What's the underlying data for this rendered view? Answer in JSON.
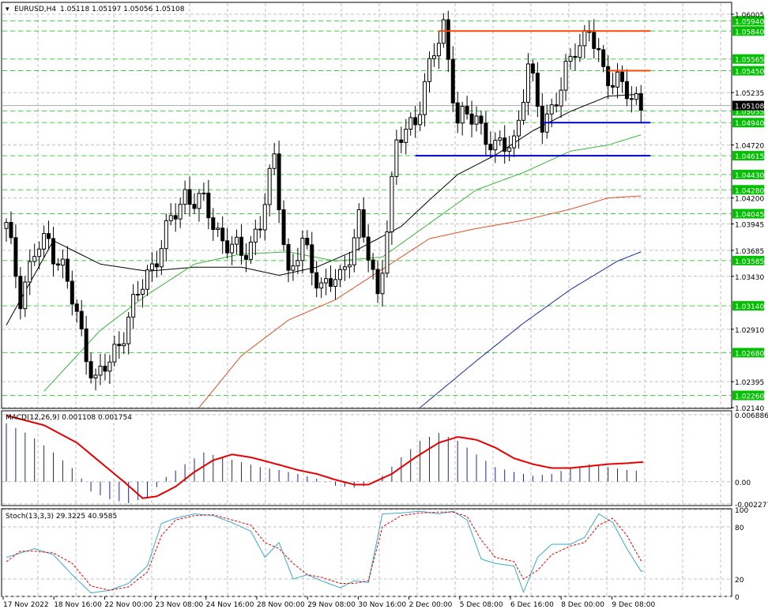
{
  "header": {
    "symbol": "EURUSD,H4",
    "ohlc": "1.05118 1.05197 1.05056 1.05108"
  },
  "colors": {
    "background": "#ffffff",
    "grid": "#c0c0c0",
    "candle": "#000000",
    "ma_fast": "#000000",
    "ma_mid": "#3cb43c",
    "ma_slow": "#e0502a",
    "ma_long": "#1a2aa8",
    "resistance": "#ff4500",
    "support": "#0000cc",
    "level_line": "#00c000",
    "level_tag": "#00c000",
    "macd_hist": "#1a2a8a",
    "macd_signal": "#e60000",
    "stoch_main": "#3fa9c9",
    "stoch_signal": "#e60000"
  },
  "chart_data": [
    {
      "type": "candlestick",
      "name": "price",
      "ylim": [
        1.0214,
        1.06005
      ],
      "price_ticks": [
        "1.06005",
        "1.05235",
        "1.04720",
        "1.04200",
        "1.03945",
        "1.03685",
        "1.03430",
        "1.02910",
        "1.02395",
        "1.02140"
      ],
      "current_price": "1.05108",
      "level_tags": [
        "1.05940",
        "1.05840",
        "1.05565",
        "1.05450",
        "1.05055",
        "1.04940",
        "1.04615",
        "1.04430",
        "1.04280",
        "1.04045",
        "1.03585",
        "1.03140",
        "1.02680",
        "1.02260"
      ],
      "x_labels": [
        "17 Nov 2022",
        "18 Nov 16:00",
        "22 Nov 00:00",
        "23 Nov 08:00",
        "24 Nov 16:00",
        "28 Nov 00:00",
        "29 Nov 08:00",
        "30 Nov 16:00",
        "2 Dec 00:00",
        "5 Dec 08:00",
        "6 Dec 16:00",
        "8 Dec 00:00",
        "9 Dec 08:00"
      ],
      "horizontal_lines": [
        {
          "kind": "resistance",
          "price": 1.0584,
          "from_bar": 92,
          "to_bar": 137
        },
        {
          "kind": "resistance",
          "price": 1.0545,
          "from_bar": 128,
          "to_bar": 137
        },
        {
          "kind": "support",
          "price": 1.0494,
          "from_bar": 114,
          "to_bar": 137
        },
        {
          "kind": "support",
          "price": 1.04615,
          "from_bar": 87,
          "to_bar": 137
        }
      ],
      "anchors": [
        [
          0,
          1.039
        ],
        [
          3,
          1.0325
        ],
        [
          6,
          1.0365
        ],
        [
          9,
          1.0378
        ],
        [
          12,
          1.0352
        ],
        [
          16,
          1.0285
        ],
        [
          19,
          1.024
        ],
        [
          22,
          1.0258
        ],
        [
          26,
          1.0302
        ],
        [
          30,
          1.0345
        ],
        [
          34,
          1.0385
        ],
        [
          38,
          1.0425
        ],
        [
          42,
          1.0412
        ],
        [
          46,
          1.038
        ],
        [
          50,
          1.0362
        ],
        [
          54,
          1.0395
        ],
        [
          57,
          1.0456
        ],
        [
          60,
          1.0345
        ],
        [
          63,
          1.0372
        ],
        [
          67,
          1.0335
        ],
        [
          71,
          1.0338
        ],
        [
          75,
          1.04
        ],
        [
          79,
          1.0322
        ],
        [
          83,
          1.047
        ],
        [
          87,
          1.05
        ],
        [
          90,
          1.0545
        ],
        [
          93,
          1.059
        ],
        [
          96,
          1.0495
        ],
        [
          100,
          1.05
        ],
        [
          104,
          1.0465
        ],
        [
          108,
          1.0478
        ],
        [
          111,
          1.0545
        ],
        [
          114,
          1.0495
        ],
        [
          118,
          1.0525
        ],
        [
          121,
          1.057
        ],
        [
          124,
          1.0585
        ],
        [
          127,
          1.054
        ],
        [
          130,
          1.054
        ],
        [
          133,
          1.0512
        ],
        [
          135,
          1.05108
        ]
      ],
      "moving_averages": [
        {
          "name": "ma_fast",
          "points": [
            [
              0,
              1.0295
            ],
            [
              10,
              1.0378
            ],
            [
              20,
              1.0355
            ],
            [
              30,
              1.0348
            ],
            [
              40,
              1.0352
            ],
            [
              50,
              1.0352
            ],
            [
              58,
              1.0344
            ],
            [
              66,
              1.0352
            ],
            [
              75,
              1.037
            ],
            [
              84,
              1.0392
            ],
            [
              90,
              1.0418
            ],
            [
              96,
              1.0443
            ],
            [
              104,
              1.0462
            ],
            [
              112,
              1.0486
            ],
            [
              120,
              1.0505
            ],
            [
              128,
              1.052
            ],
            [
              135,
              1.0522
            ]
          ]
        },
        {
          "name": "ma_mid",
          "points": [
            [
              8,
              1.023
            ],
            [
              20,
              1.029
            ],
            [
              30,
              1.0325
            ],
            [
              40,
              1.0355
            ],
            [
              50,
              1.0365
            ],
            [
              60,
              1.0367
            ],
            [
              70,
              1.0358
            ],
            [
              80,
              1.0362
            ],
            [
              90,
              1.0395
            ],
            [
              100,
              1.0428
            ],
            [
              110,
              1.0445
            ],
            [
              120,
              1.0466
            ],
            [
              128,
              1.0472
            ],
            [
              135,
              1.0482
            ]
          ]
        },
        {
          "name": "ma_slow",
          "points": [
            [
              41,
              1.0214
            ],
            [
              50,
              1.0265
            ],
            [
              60,
              1.03
            ],
            [
              70,
              1.032
            ],
            [
              80,
              1.035
            ],
            [
              90,
              1.038
            ],
            [
              100,
              1.039
            ],
            [
              110,
              1.0398
            ],
            [
              120,
              1.0409
            ],
            [
              128,
              1.042
            ],
            [
              135,
              1.0422
            ]
          ]
        },
        {
          "name": "ma_long",
          "points": [
            [
              88,
              1.0214
            ],
            [
              100,
              1.026
            ],
            [
              110,
              1.0297
            ],
            [
              120,
              1.033
            ],
            [
              130,
              1.0358
            ],
            [
              135,
              1.0367
            ]
          ]
        }
      ]
    },
    {
      "type": "bar",
      "name": "MACD(12,26,9) 0.001108 0.001754",
      "ylim": [
        -0.00245,
        0.0072
      ],
      "ticks": [
        "0.006886",
        "0.00",
        "-0.002277"
      ],
      "histogram_anchors": [
        [
          0,
          0.006
        ],
        [
          5,
          0.0048
        ],
        [
          10,
          0.003
        ],
        [
          15,
          0.001
        ],
        [
          18,
          -0.001
        ],
        [
          22,
          -0.0018
        ],
        [
          26,
          -0.0022
        ],
        [
          30,
          -0.0016
        ],
        [
          34,
          0.0005
        ],
        [
          38,
          0.0018
        ],
        [
          42,
          0.003
        ],
        [
          46,
          0.0025
        ],
        [
          50,
          0.002
        ],
        [
          54,
          0.0015
        ],
        [
          58,
          0.0012
        ],
        [
          62,
          0.0008
        ],
        [
          66,
          0.0003
        ],
        [
          70,
          -0.0004
        ],
        [
          74,
          -0.0006
        ],
        [
          77,
          -0.0004
        ],
        [
          80,
          0.0006
        ],
        [
          84,
          0.0025
        ],
        [
          88,
          0.0042
        ],
        [
          92,
          0.005
        ],
        [
          96,
          0.0042
        ],
        [
          100,
          0.0028
        ],
        [
          104,
          0.0015
        ],
        [
          108,
          0.001
        ],
        [
          112,
          0.0006
        ],
        [
          116,
          0.0008
        ],
        [
          120,
          0.0014
        ],
        [
          124,
          0.0018
        ],
        [
          128,
          0.0015
        ],
        [
          132,
          0.0012
        ],
        [
          135,
          0.0011
        ]
      ],
      "signal_anchors": [
        [
          0,
          0.0068
        ],
        [
          8,
          0.0058
        ],
        [
          15,
          0.004
        ],
        [
          20,
          0.002
        ],
        [
          25,
          0.0
        ],
        [
          29,
          -0.0017
        ],
        [
          32,
          -0.0015
        ],
        [
          36,
          -0.0005
        ],
        [
          40,
          0.001
        ],
        [
          44,
          0.0022
        ],
        [
          48,
          0.0028
        ],
        [
          52,
          0.0025
        ],
        [
          56,
          0.002
        ],
        [
          62,
          0.0012
        ],
        [
          66,
          0.0008
        ],
        [
          70,
          0.0002
        ],
        [
          74,
          -0.0003
        ],
        [
          77,
          -0.0003
        ],
        [
          82,
          0.0008
        ],
        [
          87,
          0.0025
        ],
        [
          92,
          0.004
        ],
        [
          96,
          0.0046
        ],
        [
          100,
          0.0043
        ],
        [
          104,
          0.0035
        ],
        [
          108,
          0.0024
        ],
        [
          112,
          0.0018
        ],
        [
          116,
          0.0014
        ],
        [
          120,
          0.0014
        ],
        [
          124,
          0.0016
        ],
        [
          128,
          0.0018
        ],
        [
          132,
          0.0019
        ],
        [
          135,
          0.002
        ]
      ]
    },
    {
      "type": "line",
      "name": "Stoch(13,3,3) 29.3225 40.9585",
      "ylim": [
        0,
        100
      ],
      "ticks": [
        "100",
        "80",
        "20",
        "0"
      ],
      "main_anchors": [
        [
          0,
          45
        ],
        [
          3,
          50
        ],
        [
          6,
          55
        ],
        [
          10,
          48
        ],
        [
          14,
          25
        ],
        [
          18,
          4
        ],
        [
          22,
          7
        ],
        [
          26,
          15
        ],
        [
          30,
          35
        ],
        [
          33,
          84
        ],
        [
          36,
          90
        ],
        [
          40,
          95
        ],
        [
          44,
          93
        ],
        [
          48,
          85
        ],
        [
          52,
          75
        ],
        [
          55,
          45
        ],
        [
          58,
          62
        ],
        [
          61,
          20
        ],
        [
          64,
          25
        ],
        [
          67,
          18
        ],
        [
          71,
          10
        ],
        [
          74,
          18
        ],
        [
          77,
          16
        ],
        [
          80,
          95
        ],
        [
          84,
          96
        ],
        [
          88,
          98
        ],
        [
          92,
          95
        ],
        [
          95,
          98
        ],
        [
          98,
          88
        ],
        [
          101,
          43
        ],
        [
          104,
          38
        ],
        [
          108,
          35
        ],
        [
          110,
          5
        ],
        [
          113,
          45
        ],
        [
          116,
          60
        ],
        [
          120,
          60
        ],
        [
          123,
          68
        ],
        [
          126,
          95
        ],
        [
          129,
          85
        ],
        [
          132,
          55
        ],
        [
          135,
          29
        ]
      ],
      "signal_anchors": [
        [
          0,
          40
        ],
        [
          3,
          52
        ],
        [
          6,
          52
        ],
        [
          10,
          50
        ],
        [
          14,
          38
        ],
        [
          18,
          12
        ],
        [
          22,
          7
        ],
        [
          26,
          11
        ],
        [
          30,
          28
        ],
        [
          33,
          70
        ],
        [
          36,
          88
        ],
        [
          40,
          93
        ],
        [
          44,
          94
        ],
        [
          48,
          88
        ],
        [
          52,
          82
        ],
        [
          55,
          62
        ],
        [
          58,
          55
        ],
        [
          61,
          38
        ],
        [
          64,
          25
        ],
        [
          67,
          22
        ],
        [
          71,
          15
        ],
        [
          74,
          15
        ],
        [
          77,
          18
        ],
        [
          80,
          80
        ],
        [
          84,
          93
        ],
        [
          88,
          96
        ],
        [
          92,
          97
        ],
        [
          95,
          97
        ],
        [
          98,
          92
        ],
        [
          101,
          65
        ],
        [
          104,
          45
        ],
        [
          108,
          40
        ],
        [
          110,
          20
        ],
        [
          113,
          30
        ],
        [
          116,
          48
        ],
        [
          120,
          58
        ],
        [
          123,
          62
        ],
        [
          126,
          82
        ],
        [
          129,
          90
        ],
        [
          132,
          70
        ],
        [
          135,
          41
        ]
      ]
    }
  ]
}
